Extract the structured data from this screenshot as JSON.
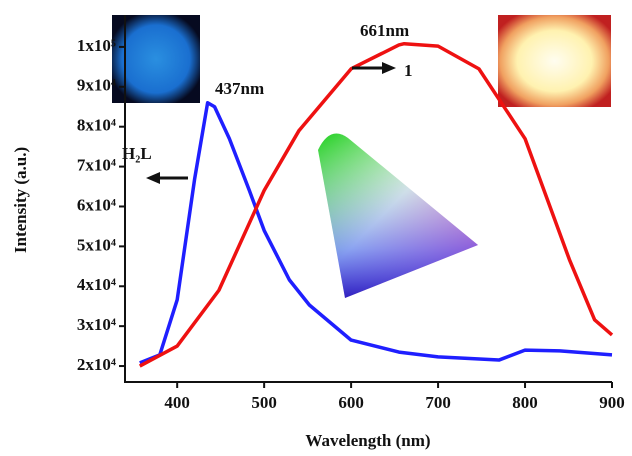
{
  "chart_data": {
    "type": "line",
    "x_label": "Wavelength (nm)",
    "y_label": "Intensity (a.u.)",
    "xlim": [
      340,
      900
    ],
    "ylim": [
      16000,
      108000
    ],
    "xticks": [
      400,
      500,
      600,
      700,
      800,
      900
    ],
    "yticks": [
      {
        "value": 20000,
        "label": "2x10⁴"
      },
      {
        "value": 30000,
        "label": "3x10⁴"
      },
      {
        "value": 40000,
        "label": "4x10⁴"
      },
      {
        "value": 50000,
        "label": "5x10⁴"
      },
      {
        "value": 60000,
        "label": "6x10⁴"
      },
      {
        "value": 70000,
        "label": "7x10⁴"
      },
      {
        "value": 80000,
        "label": "8x10⁴"
      },
      {
        "value": 90000,
        "label": "9x10⁴"
      },
      {
        "value": 100000,
        "label": "1x10⁵"
      }
    ],
    "series": [
      {
        "name": "H₂L",
        "color": "#1f1fff",
        "x": [
          357,
          380,
          400,
          420,
          435,
          443,
          460,
          483,
          500,
          529,
          552,
          600,
          655,
          700,
          770,
          800,
          840,
          900
        ],
        "values": [
          20800,
          22800,
          36600,
          66800,
          86000,
          85000,
          77000,
          64000,
          54000,
          41600,
          35300,
          26500,
          23500,
          22300,
          21500,
          24000,
          23800,
          22800
        ]
      },
      {
        "name": "1",
        "color": "#ee1111",
        "x": [
          357,
          400,
          448,
          500,
          540,
          600,
          655,
          661,
          700,
          747,
          800,
          851,
          880,
          900
        ],
        "values": [
          20000,
          25000,
          39000,
          64000,
          79000,
          94500,
          100500,
          100800,
          100200,
          94500,
          77000,
          46700,
          31600,
          27800
        ]
      }
    ],
    "annotations": [
      "437nm",
      "661nm"
    ]
  }
}
